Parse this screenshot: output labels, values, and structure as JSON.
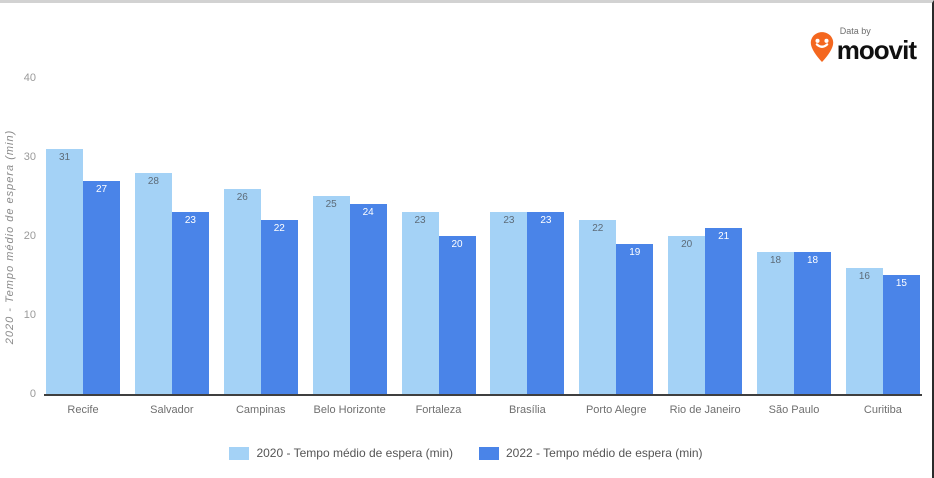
{
  "logo": {
    "data_by": "Data by",
    "brand": "moovit",
    "pin_color": "#f4671f"
  },
  "chart_data": {
    "type": "bar",
    "title": "",
    "ylabel": "2020 - Tempo médio de espera (min)",
    "xlabel": "",
    "ylim": [
      0,
      40
    ],
    "yticks": [
      0,
      10,
      20,
      30,
      40
    ],
    "grid": false,
    "legend_position": "bottom",
    "categories": [
      "Recife",
      "Salvador",
      "Campinas",
      "Belo Horizonte",
      "Fortaleza",
      "Brasília",
      "Porto Alegre",
      "Rio de Janeiro",
      "São Paulo",
      "Curitiba"
    ],
    "series": [
      {
        "name": "2020 - Tempo médio de espera (min)",
        "color": "#a4d2f6",
        "values": [
          31,
          28,
          26,
          25,
          23,
          23,
          22,
          20,
          18,
          16
        ]
      },
      {
        "name": "2022 - Tempo médio de espera (min)",
        "color": "#4a84e8",
        "values": [
          27,
          23,
          22,
          24,
          20,
          23,
          19,
          21,
          18,
          15
        ]
      }
    ]
  }
}
